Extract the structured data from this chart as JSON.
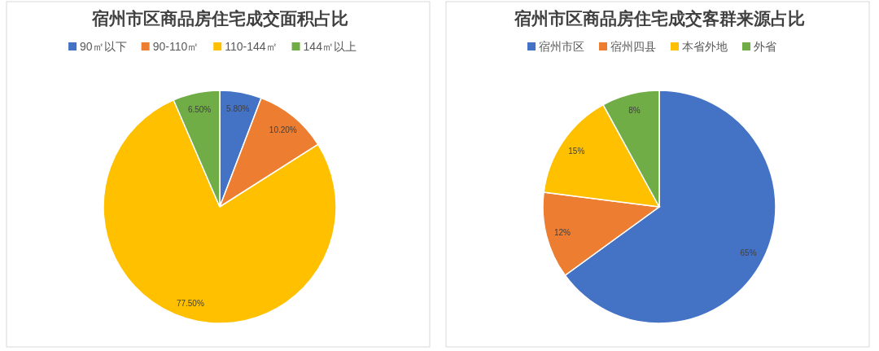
{
  "chart_data": [
    {
      "type": "pie",
      "title": "宿州市区商品房住宅成交面积占比",
      "categories": [
        "90㎡以下",
        "90-110㎡",
        "110-144㎡",
        "144㎡以上"
      ],
      "values": [
        5.8,
        10.2,
        77.5,
        6.5
      ],
      "colors": [
        "#4472c4",
        "#ed7d31",
        "#ffc000",
        "#70ad47"
      ],
      "value_labels": [
        "5.80%",
        "10.20%",
        "77.50%",
        "6.50%"
      ],
      "legend": "top"
    },
    {
      "type": "pie",
      "title": "宿州市区商品房住宅成交客群来源占比",
      "categories": [
        "宿州市区",
        "宿州四县",
        "本省外地",
        "外省"
      ],
      "values": [
        65,
        12,
        15,
        8
      ],
      "colors": [
        "#4472c4",
        "#ed7d31",
        "#ffc000",
        "#70ad47"
      ],
      "value_labels": [
        "65%",
        "12%",
        "15%",
        "8%"
      ],
      "legend": "top"
    }
  ]
}
